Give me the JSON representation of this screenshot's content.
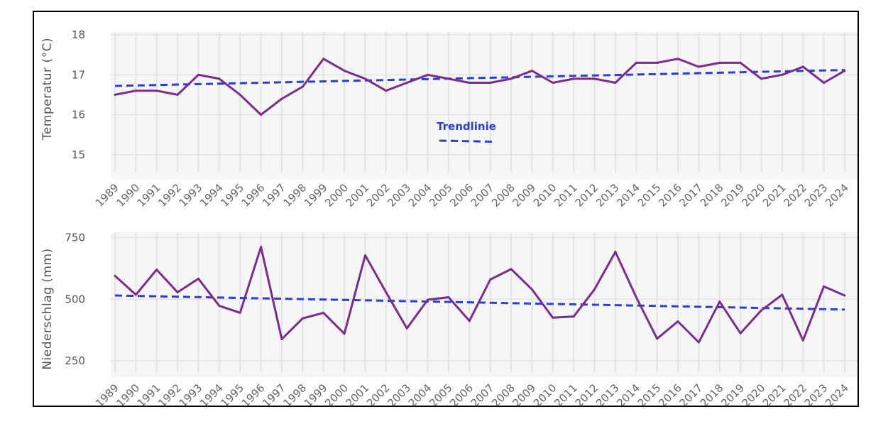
{
  "chart_data": [
    {
      "type": "line",
      "ylabel": "Temperatur (°C)",
      "ylim": [
        14.8,
        18
      ],
      "yticks": [
        15,
        16,
        17,
        18
      ],
      "x": [
        1989,
        1990,
        1991,
        1992,
        1993,
        1994,
        1995,
        1996,
        1997,
        1998,
        1999,
        2000,
        2001,
        2002,
        2003,
        2004,
        2005,
        2006,
        2007,
        2008,
        2009,
        2010,
        2011,
        2012,
        2013,
        2014,
        2015,
        2016,
        2017,
        2018,
        2019,
        2020,
        2021,
        2022,
        2023,
        2024
      ],
      "series": [
        {
          "name": "",
          "color": "#7b2d8e",
          "values": [
            16.5,
            16.6,
            16.6,
            16.5,
            17.0,
            16.9,
            16.5,
            16.0,
            16.4,
            16.7,
            17.4,
            17.1,
            16.9,
            16.6,
            16.8,
            17.0,
            16.9,
            16.8,
            16.8,
            16.9,
            17.1,
            16.8,
            16.9,
            16.9,
            16.8,
            17.3,
            17.3,
            17.4,
            17.2,
            17.3,
            17.3,
            16.9,
            17.0,
            17.2,
            16.8,
            17.1
          ]
        }
      ],
      "trend": {
        "name": "",
        "color": "#2b3fd6",
        "start": 16.72,
        "end": 17.12
      },
      "legend": {
        "label": "Trendlinie",
        "position": "center"
      },
      "grid": true
    },
    {
      "type": "line",
      "ylabel": "Niederschlag (mm)",
      "ylim": [
        230,
        760
      ],
      "yticks": [
        250,
        500,
        750
      ],
      "x": [
        1989,
        1990,
        1991,
        1992,
        1993,
        1994,
        1995,
        1996,
        1997,
        1998,
        1999,
        2000,
        2001,
        2002,
        2003,
        2004,
        2005,
        2006,
        2007,
        2008,
        2009,
        2010,
        2011,
        2012,
        2013,
        2014,
        2015,
        2016,
        2017,
        2018,
        2019,
        2020,
        2021,
        2022,
        2023,
        2024
      ],
      "series": [
        {
          "name": "",
          "color": "#7b2d8e",
          "values": [
            595,
            518,
            620,
            528,
            583,
            473,
            445,
            712,
            338,
            422,
            445,
            360,
            678,
            528,
            382,
            498,
            508,
            412,
            580,
            622,
            540,
            425,
            430,
            540,
            692,
            508,
            340,
            410,
            325,
            490,
            362,
            455,
            518,
            333,
            552,
            515
          ]
        }
      ],
      "trend": {
        "name": "",
        "color": "#2b3fd6",
        "start": 515,
        "end": 458
      },
      "grid": true
    }
  ]
}
